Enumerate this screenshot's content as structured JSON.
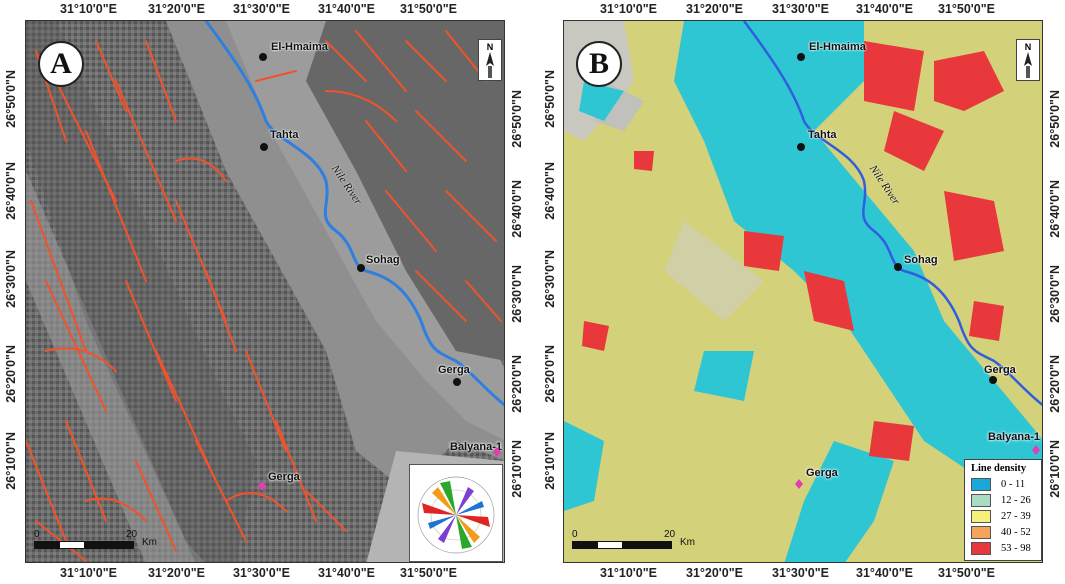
{
  "figure": {
    "panels": [
      {
        "badge": "A",
        "cities": [
          "El-Hmaima",
          "Tahta",
          "Sohag",
          "Gerga"
        ],
        "wells": [
          "Balyana-1",
          "Gerga"
        ],
        "river_label": "Nile River",
        "scale": {
          "start": "0",
          "end": "20",
          "unit": "Km"
        }
      },
      {
        "badge": "B",
        "cities": [
          "El-Hmaima",
          "Tahta",
          "Sohag",
          "Gerga"
        ],
        "wells": [
          "Balyana-1",
          "Gerga"
        ],
        "river_label": "Nile River",
        "scale": {
          "start": "0",
          "end": "20",
          "unit": "Km"
        },
        "legend": {
          "title": "Line density",
          "classes": [
            {
              "label": "0 - 11",
              "color": "#1aa7d9"
            },
            {
              "label": "12 - 26",
              "color": "#a9dcc0"
            },
            {
              "label": "27 - 39",
              "color": "#f4f07a"
            },
            {
              "label": "40 - 52",
              "color": "#f5a55a"
            },
            {
              "label": "53 - 98",
              "color": "#e8383b"
            }
          ]
        }
      }
    ],
    "x_ticks": [
      "31°10'0\"E",
      "31°20'0\"E",
      "31°30'0\"E",
      "31°40'0\"E",
      "31°50'0\"E"
    ],
    "y_ticks": [
      "26°50'0\"N",
      "26°40'0\"N",
      "26°30'0\"N",
      "26°20'0\"N",
      "26°10'0\"N"
    ]
  }
}
